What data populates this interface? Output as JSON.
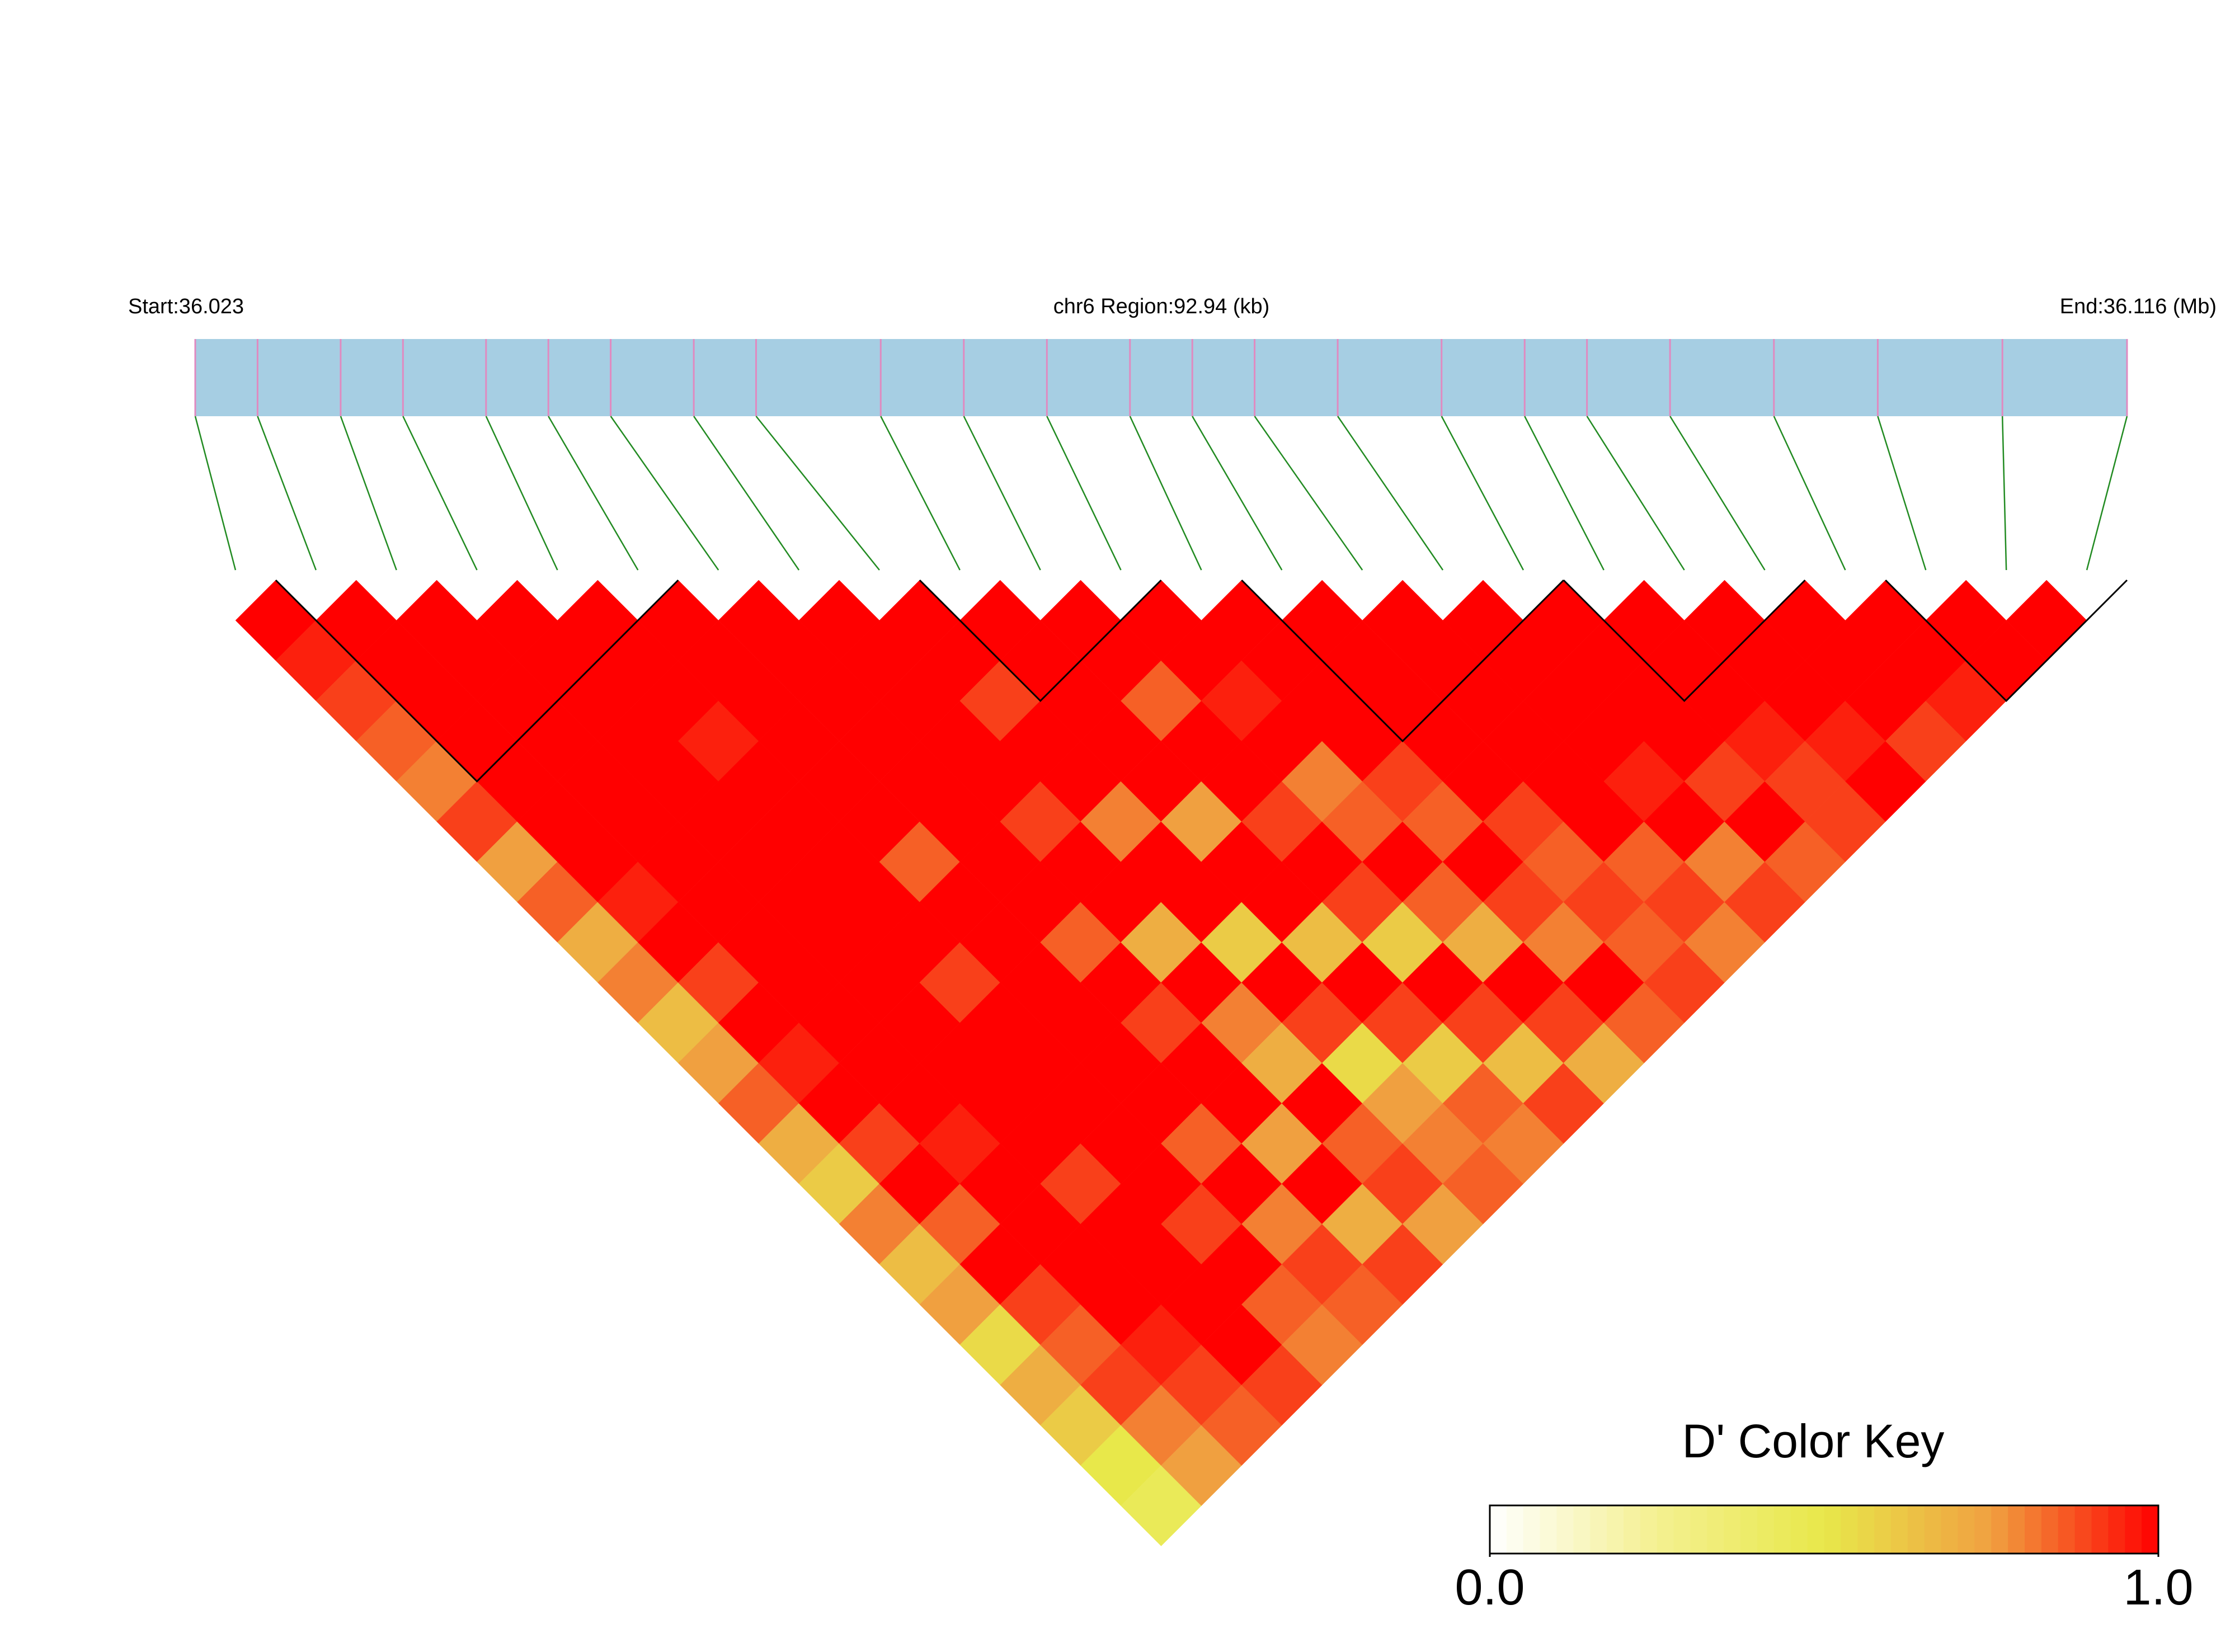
{
  "chart_data": {
    "type": "ld-heatmap",
    "start_label": "Start:36.023",
    "region_label": "chr6 Region:92.94 (kb)",
    "end_label": "End:36.116 (Mb)",
    "xlim": [
      36.023,
      36.116
    ],
    "snp_positions": [
      36.023,
      36.026,
      36.03,
      36.033,
      36.037,
      36.04,
      36.043,
      36.047,
      36.05,
      36.056,
      36.06,
      36.064,
      36.068,
      36.071,
      36.074,
      36.078,
      36.083,
      36.087,
      36.09,
      36.094,
      36.099,
      36.104,
      36.11,
      36.116
    ],
    "dprime": [
      [
        1
      ],
      [
        0.95,
        1
      ],
      [
        0.9,
        1,
        1
      ],
      [
        0.85,
        1,
        1,
        1
      ],
      [
        0.8,
        1,
        1,
        1,
        1
      ],
      [
        0.9,
        1,
        1,
        1,
        1,
        1
      ],
      [
        0.75,
        1,
        1,
        1,
        1,
        1,
        1
      ],
      [
        0.85,
        1,
        1,
        1,
        0.95,
        1,
        1,
        1
      ],
      [
        0.7,
        0.95,
        1,
        1,
        1,
        1,
        1,
        1,
        1
      ],
      [
        0.8,
        1,
        1,
        1,
        1,
        1,
        1,
        1,
        1,
        1
      ],
      [
        0.65,
        0.9,
        1,
        1,
        1,
        1,
        1,
        1,
        0.9,
        1,
        1
      ],
      [
        0.75,
        1,
        1,
        1,
        1,
        0.85,
        1,
        1,
        1,
        1,
        1,
        1
      ],
      [
        0.85,
        0.95,
        1,
        1,
        1,
        1,
        1,
        0.9,
        1,
        1,
        0.85,
        1,
        1
      ],
      [
        0.7,
        1,
        1,
        1,
        0.9,
        1,
        1,
        1,
        0.8,
        1,
        1,
        0.95,
        1,
        1
      ],
      [
        0.6,
        0.9,
        1,
        1,
        1,
        1,
        0.85,
        1,
        1,
        0.75,
        1,
        1,
        1,
        1,
        1
      ],
      [
        0.8,
        1,
        0.95,
        1,
        1,
        1,
        1,
        0.7,
        1,
        1,
        0.9,
        0.8,
        1,
        1,
        1,
        1
      ],
      [
        0.65,
        0.85,
        1,
        1,
        1,
        1,
        0.9,
        1,
        0.6,
        1,
        1,
        0.85,
        0.9,
        1,
        1,
        1,
        1
      ],
      [
        0.75,
        1,
        1,
        0.9,
        1,
        1,
        1,
        0.8,
        1,
        0.65,
        0.9,
        1,
        0.85,
        1,
        1,
        1,
        1,
        1
      ],
      [
        0.55,
        0.9,
        1,
        1,
        1,
        0.85,
        1,
        0.7,
        0.9,
        1,
        0.6,
        0.85,
        1,
        0.9,
        1,
        1,
        1,
        1,
        1
      ],
      [
        0.7,
        0.85,
        1,
        1,
        0.9,
        1,
        0.75,
        1,
        0.55,
        0.9,
        1,
        0.7,
        0.9,
        0.85,
        1,
        0.95,
        1,
        1,
        1,
        1
      ],
      [
        0.6,
        0.9,
        0.95,
        1,
        1,
        0.8,
        1,
        0.85,
        0.75,
        0.6,
        0.9,
        1,
        0.8,
        0.9,
        0.85,
        1,
        0.9,
        0.95,
        1,
        1,
        1
      ],
      [
        0.5,
        0.8,
        0.9,
        1,
        0.85,
        0.9,
        0.7,
        0.9,
        0.8,
        0.85,
        0.65,
        0.9,
        1,
        0.85,
        0.9,
        0.8,
        1,
        0.9,
        0.95,
        1,
        1,
        1
      ],
      [
        0.45,
        0.75,
        0.85,
        0.9,
        0.8,
        0.85,
        0.9,
        0.75,
        0.85,
        0.8,
        0.9,
        0.7,
        0.85,
        0.9,
        0.8,
        0.9,
        0.85,
        0.9,
        1,
        0.9,
        0.95,
        1,
        1
      ]
    ],
    "blocks": [
      [
        1,
        5
      ],
      [
        9,
        11
      ],
      [
        13,
        16
      ],
      [
        17,
        19
      ],
      [
        21,
        23
      ]
    ],
    "colors": [
      "#ffffff",
      "#f4f090",
      "#e8e84a",
      "#f0a040",
      "#ff0000"
    ],
    "bar_color": "#a6cee3",
    "snp_line_color": "#e08ac0",
    "connector_color": "#228b22",
    "key_title": "D' Color Key",
    "key_lim": [
      0,
      1
    ],
    "key_ticks": [
      {
        "value": 0,
        "label": "0.0"
      },
      {
        "value": 1,
        "label": "1.0"
      }
    ]
  }
}
